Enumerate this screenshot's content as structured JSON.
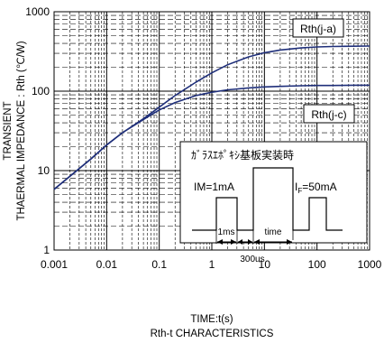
{
  "chart_data": {
    "type": "line",
    "title": "Rth-t CHARACTERISTICS",
    "xlabel": "TIME:t(s)",
    "ylabel_line1": "TRANSIENT",
    "ylabel_line2": "THAERMAL IMPEDANCE : Rth (℃/W)",
    "x_scale": "log",
    "y_scale": "log",
    "xlim": [
      0.001,
      1000
    ],
    "ylim": [
      1,
      1000
    ],
    "grid": true,
    "x_ticks": [
      "0.001",
      "0.01",
      "0.1",
      "1",
      "10",
      "100",
      "1000"
    ],
    "y_ticks": [
      "1",
      "10",
      "100",
      "1000"
    ],
    "series": [
      {
        "name": "Rth(j-a)",
        "x": [
          0.001,
          0.002,
          0.005,
          0.01,
          0.02,
          0.05,
          0.1,
          0.2,
          0.5,
          1,
          2,
          5,
          10,
          20,
          50,
          100,
          200,
          500,
          1000
        ],
        "y": [
          5.8,
          8.5,
          14,
          21,
          30,
          45,
          63,
          88,
          130,
          170,
          215,
          270,
          305,
          330,
          350,
          360,
          365,
          368,
          370
        ]
      },
      {
        "name": "Rth(j-c)",
        "x": [
          0.001,
          0.002,
          0.005,
          0.01,
          0.02,
          0.05,
          0.1,
          0.2,
          0.5,
          1,
          2,
          5,
          10,
          20,
          50,
          100,
          200,
          500,
          1000
        ],
        "y": [
          5.8,
          8.5,
          14,
          21,
          30,
          44,
          58,
          72,
          88,
          97,
          104,
          110,
          113,
          115,
          117,
          118,
          118,
          119,
          119
        ]
      }
    ],
    "inset": {
      "title": "ｶﾞﾗｽｴﾎﾟｷｼ基板実装時",
      "im_label": "IM=1mA",
      "if_label_main": "I",
      "if_label_sub": "F",
      "if_label_value": "=50mA",
      "t1_label": "1ms",
      "time_label": "time",
      "t2_label": "300us"
    }
  },
  "colors": {
    "curve": "#1f2f7a",
    "grid": "#000000",
    "background": "#ffffff"
  }
}
